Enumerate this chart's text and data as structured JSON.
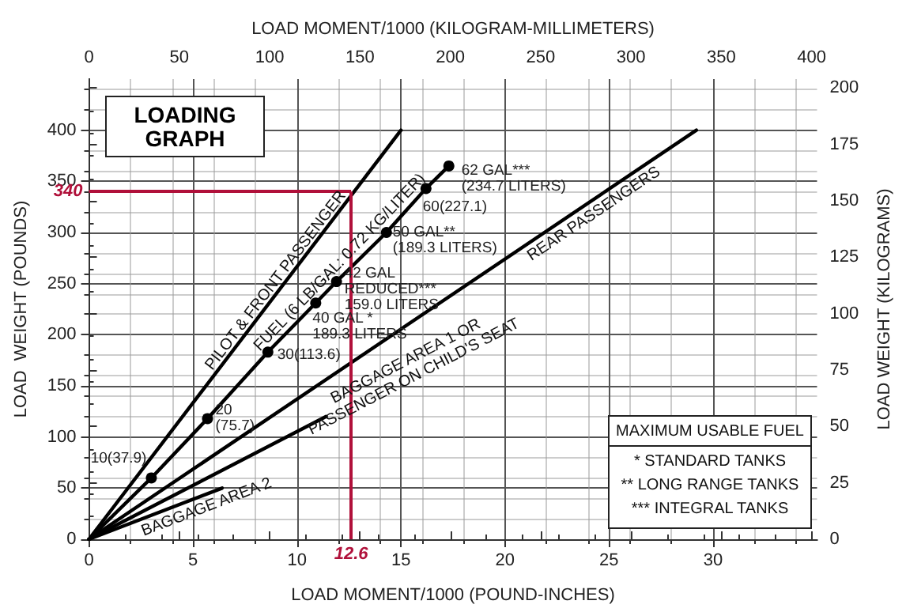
{
  "chart_data": {
    "type": "line",
    "title": "LOADING\nGRAPH",
    "xlabel": "LOAD MOMENT/1000 (POUND-INCHES)",
    "ylabel": "LOAD  WEIGHT (POUNDS)",
    "x2label": "LOAD MOMENT/1000 (KILOGRAM-MILLIMETERS)",
    "y2label": "LOAD WEIGHT (KILOGRAMS)",
    "xlim": [
      0,
      35
    ],
    "xticks": [
      0,
      5,
      10,
      15,
      20,
      25,
      30
    ],
    "ylim": [
      0,
      450
    ],
    "yticks": [
      0,
      50,
      100,
      150,
      200,
      250,
      300,
      350,
      400
    ],
    "x2lim": [
      0,
      403
    ],
    "x2ticks": [
      0,
      50,
      100,
      150,
      200,
      250,
      300,
      350,
      400
    ],
    "y2lim": [
      0,
      204
    ],
    "y2ticks": [
      0,
      25,
      50,
      75,
      100,
      125,
      150,
      175,
      200
    ],
    "grid": true,
    "marker": "none",
    "line_style": "solid",
    "series": [
      {
        "name": "PILOT & FRONT PASSENGER",
        "color": "#000000",
        "x": [
          0,
          15
        ],
        "values": [
          0,
          400
        ]
      },
      {
        "name": "FUEL (6 LB/GAL: 0.72 KG/LITER)",
        "color": "#000000",
        "marker": "circle",
        "x": [
          0,
          3,
          5.7,
          8.6,
          10.9,
          11.9,
          14.3,
          16.2,
          17.3
        ],
        "values": [
          0,
          60,
          118,
          183,
          231,
          252,
          300,
          343,
          365
        ]
      },
      {
        "name": "REAR PASSENGERS",
        "color": "#000000",
        "x": [
          0,
          29.2
        ],
        "values": [
          0,
          400
        ]
      },
      {
        "name": "BAGGAGE AREA 1 OR\nPASSENGER ON CHILD'S SEAT",
        "color": "#000000",
        "x": [
          0,
          11.4
        ],
        "values": [
          0,
          120
        ]
      },
      {
        "name": "BAGGAGE AREA 2",
        "color": "#000000",
        "x": [
          0,
          6.4
        ],
        "values": [
          0,
          50
        ]
      }
    ],
    "ref_lines": [
      {
        "axis": "y",
        "value": 340,
        "label": "340",
        "color": "#b0103a"
      },
      {
        "axis": "x",
        "value": 12.6,
        "label": "12.6",
        "color": "#b0103a"
      }
    ],
    "annotations": [
      {
        "text": "10(37.9)",
        "x": 3,
        "y": 60
      },
      {
        "text": "20\n(75.7)",
        "x": 5.7,
        "y": 118
      },
      {
        "text": "30(113.6)",
        "x": 8.6,
        "y": 183
      },
      {
        "text": "40 GAL *\n189.3 LITERS",
        "x": 10.9,
        "y": 231
      },
      {
        "text": "42 GAL\nREDUCED***\n159.0 LITERS",
        "x": 11.9,
        "y": 252
      },
      {
        "text": "50 GAL**\n(189.3 LITERS)",
        "x": 14.3,
        "y": 300
      },
      {
        "text": "60(227.1)",
        "x": 16.2,
        "y": 343
      },
      {
        "text": "62 GAL***\n(234.7 LITERS)",
        "x": 17.3,
        "y": 365
      },
      "MAXIMUM USABLE FUEL",
      "* STANDARD TANKS",
      "** LONG RANGE TANKS",
      "*** INTEGRAL TANKS"
    ]
  }
}
